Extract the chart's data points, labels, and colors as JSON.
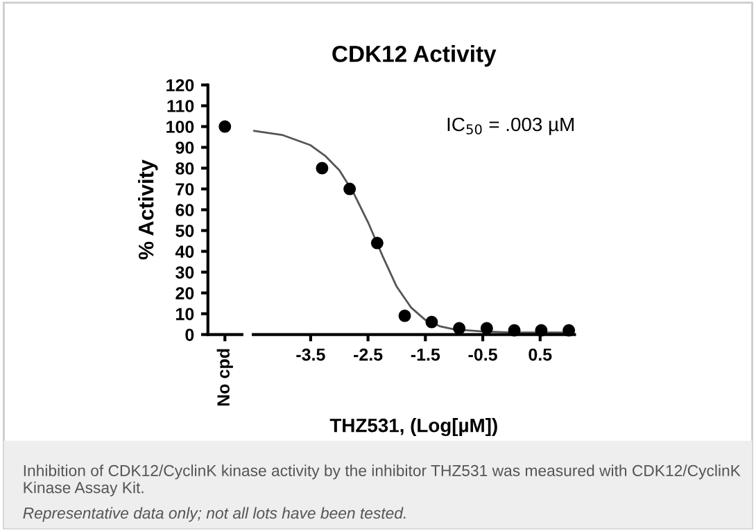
{
  "chart_data": [
    {
      "type": "scatter",
      "ylabel": "% Activity",
      "categories": [
        "No cpd"
      ],
      "values": [
        100
      ],
      "color": "#000000",
      "marker": "circle",
      "ylim": [
        0,
        120
      ],
      "yticks": [
        0,
        10,
        20,
        30,
        40,
        50,
        60,
        70,
        80,
        90,
        100,
        110,
        120
      ],
      "grid": false,
      "legend": false
    },
    {
      "type": "scatter",
      "title": "CDK12 Activity",
      "xlabel": "THZ531, (Log[µM])",
      "xlim": [
        -4.5,
        1.1
      ],
      "xticks": [
        -3.5,
        -2.5,
        -1.5,
        -0.5,
        0.5
      ],
      "ylim": [
        0,
        120
      ],
      "tick_labels": "x",
      "grid": false,
      "legend": false,
      "series": [
        {
          "type": "scatter",
          "color": "#000000",
          "marker": "circle",
          "x": [
            -3.3,
            -2.82,
            -2.34,
            -1.86,
            -1.39,
            -0.91,
            -0.43,
            0.05,
            0.52,
            1.0
          ],
          "values": [
            80,
            70,
            44,
            9,
            6,
            3,
            3,
            2,
            2,
            2
          ]
        },
        {
          "type": "line",
          "color": "#555555",
          "marker": "none",
          "line_style": "solid",
          "x": [
            -4.5,
            -4.0,
            -3.5,
            -3.25,
            -3.0,
            -2.75,
            -2.5,
            -2.25,
            -2.0,
            -1.75,
            -1.5,
            -1.25,
            -1.0,
            -0.5,
            0.0,
            0.5,
            1.0
          ],
          "values": [
            98,
            96,
            91,
            86,
            79,
            68,
            54,
            38,
            23,
            13,
            7,
            4,
            2.5,
            1.5,
            1,
            1,
            1
          ]
        }
      ],
      "annotations": [
        "IC$_{50}$ = .003 µM",
        "Inhibition of CDK12/CyclinK kinase activity by the inhibitor THZ531 was measured with CDK12/CyclinK Kinase Assay Kit.",
        "Representative data only; not all lots have been tested."
      ]
    }
  ]
}
